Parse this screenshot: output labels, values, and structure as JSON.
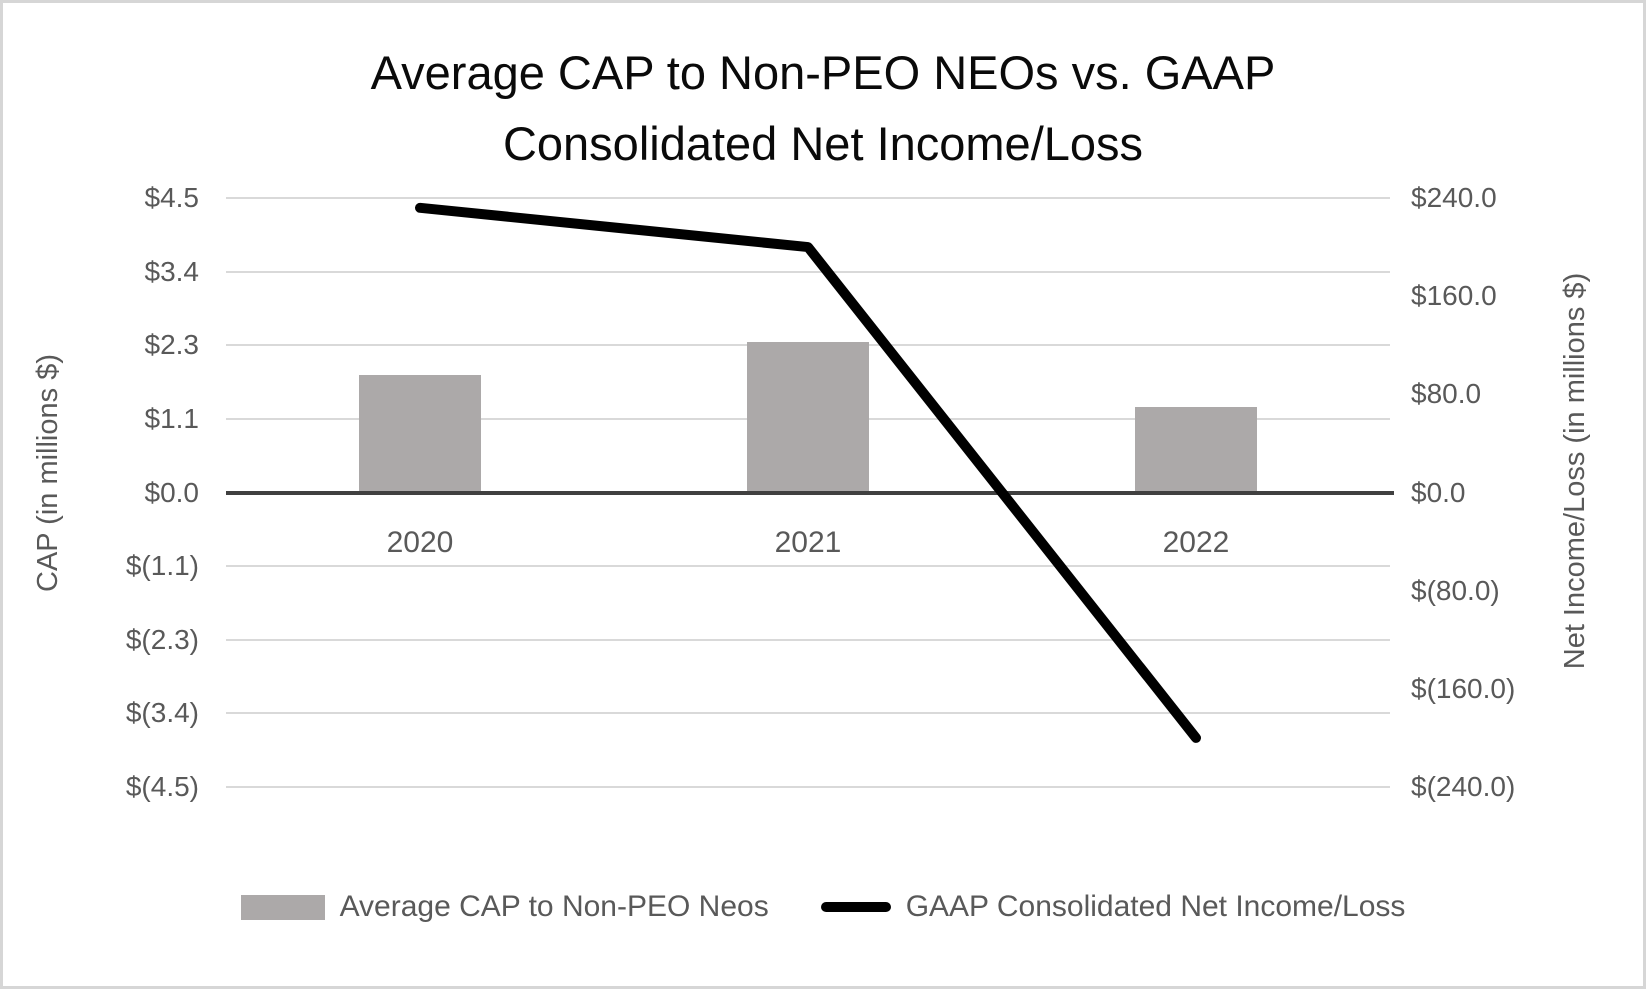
{
  "header": {
    "title_lines": [
      "Average CAP to Non-PEO NEOs vs. GAAP",
      "Consolidated Net Income/Loss"
    ]
  },
  "chart_data": {
    "type": "combo",
    "title": "Average CAP to Non-PEO NEOs vs. GAAP Consolidated Net Income/Loss",
    "categories": [
      "2020",
      "2021",
      "2022"
    ],
    "series": [
      {
        "name": "Average CAP to Non-PEO Neos",
        "type": "bar",
        "axis": "left",
        "values": [
          1.8,
          2.3,
          1.3
        ],
        "color": "#aca9a9"
      },
      {
        "name": "GAAP Consolidated Net Income/Loss",
        "type": "line",
        "axis": "right",
        "values": [
          232,
          200,
          -200
        ],
        "color": "#000000"
      }
    ],
    "left_axis": {
      "label": "CAP (in millions $)",
      "min": -4.5,
      "max": 4.5,
      "tick_values": [
        4.5,
        3.375,
        2.25,
        1.125,
        0,
        -1.125,
        -2.25,
        -3.375,
        -4.5
      ],
      "tick_labels": [
        "$4.5",
        "$3.4",
        "$2.3",
        "$1.1",
        "$0.0",
        "$(1.1)",
        "$(2.3)",
        "$(3.4)",
        "$(4.5)"
      ]
    },
    "right_axis": {
      "label": "Net Income/Loss (in millions $)",
      "min": -240,
      "max": 240,
      "tick_values": [
        240,
        160,
        80,
        0,
        -80,
        -160,
        -240
      ],
      "tick_labels": [
        "$240.0",
        "$160.0",
        "$80.0",
        "$0.0",
        "$(80.0)",
        "$(160.0)",
        "$(240.0)"
      ]
    },
    "legend": {
      "position": "bottom",
      "entries": [
        "Average CAP to Non-PEO Neos",
        "GAAP Consolidated Net Income/Loss"
      ]
    },
    "grid": true
  },
  "colors": {
    "background": "#ffffff",
    "chart_border": "#d6d6d6",
    "gridline": "#d9d9d9",
    "zero_axis": "#404040",
    "bar_fill": "#aca9a9",
    "line_stroke": "#000000",
    "title_text": "#0a0a0a",
    "axis_text": "#595959"
  }
}
